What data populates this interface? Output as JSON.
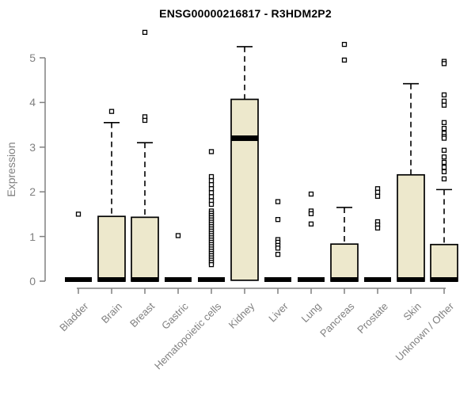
{
  "title": "ENSG00000216817 - R3HDM2P2",
  "y_axis": {
    "label": "Expression"
  },
  "colors": {
    "box_fill": "#EDE8CC",
    "box_border": "#000000",
    "median": "#000000",
    "outlier_fill": "#FFFFFF",
    "axis": "#808080",
    "tick_text": "#808080",
    "title_text": "#000000",
    "background": "#FFFFFF"
  },
  "chart_data": {
    "type": "boxplot",
    "title": "ENSG00000216817 - R3HDM2P2",
    "xlabel": "",
    "ylabel": "Expression",
    "ylim": [
      0,
      5
    ],
    "yticks": [
      0,
      1,
      2,
      3,
      4,
      5
    ],
    "grid": false,
    "legend": "none",
    "categories": [
      "Bladder",
      "Brain",
      "Breast",
      "Gastric",
      "Hematopoietic cells",
      "Kidney",
      "Liver",
      "Lung",
      "Pancreas",
      "Prostate",
      "Skin",
      "Unknown / Other"
    ],
    "series": [
      {
        "name": "Bladder",
        "whisker_low": 0,
        "q1": 0,
        "median": 0,
        "q3": 0,
        "whisker_high": 0,
        "outliers": [
          1.5
        ]
      },
      {
        "name": "Brain",
        "whisker_low": 0,
        "q1": 0,
        "median": 0.02,
        "q3": 1.45,
        "whisker_high": 3.55,
        "outliers": [
          3.8
        ]
      },
      {
        "name": "Breast",
        "whisker_low": 0,
        "q1": 0,
        "median": 0.02,
        "q3": 1.43,
        "whisker_high": 3.1,
        "outliers": [
          3.68,
          3.6,
          5.57
        ]
      },
      {
        "name": "Gastric",
        "whisker_low": 0,
        "q1": 0,
        "median": 0,
        "q3": 0,
        "whisker_high": 0,
        "outliers": [
          1.02
        ]
      },
      {
        "name": "Hematopoietic cells",
        "whisker_low": 0,
        "q1": 0,
        "median": 0,
        "q3": 0,
        "whisker_high": 0,
        "outliers": [
          2.9,
          2.34,
          2.25,
          2.16,
          2.07,
          1.98,
          1.89,
          1.8,
          1.72,
          1.57,
          1.52,
          1.47,
          1.42,
          1.37,
          1.32,
          1.27,
          1.22,
          1.17,
          1.12,
          1.07,
          1.02,
          0.97,
          0.92,
          0.87,
          0.82,
          0.77,
          0.72,
          0.67,
          0.62,
          0.57,
          0.52,
          0.47,
          0.42,
          0.37
        ]
      },
      {
        "name": "Kidney",
        "whisker_low": 0,
        "q1": 0.02,
        "median": 3.2,
        "q3": 4.07,
        "whisker_high": 5.25,
        "outliers": []
      },
      {
        "name": "Liver",
        "whisker_low": 0,
        "q1": 0,
        "median": 0,
        "q3": 0,
        "whisker_high": 0,
        "outliers": [
          1.78,
          1.38,
          0.93,
          0.87,
          0.8,
          0.74,
          0.6
        ]
      },
      {
        "name": "Lung",
        "whisker_low": 0,
        "q1": 0,
        "median": 0,
        "q3": 0,
        "whisker_high": 0,
        "outliers": [
          1.95,
          1.57,
          1.51,
          1.28
        ]
      },
      {
        "name": "Pancreas",
        "whisker_low": 0,
        "q1": 0,
        "median": 0.02,
        "q3": 0.83,
        "whisker_high": 1.65,
        "outliers": [
          5.3,
          4.95
        ]
      },
      {
        "name": "Prostate",
        "whisker_low": 0,
        "q1": 0,
        "median": 0,
        "q3": 0,
        "whisker_high": 0,
        "outliers": [
          2.07,
          1.99,
          1.9,
          1.33,
          1.26,
          1.19
        ]
      },
      {
        "name": "Skin",
        "whisker_low": 0,
        "q1": 0,
        "median": 0.02,
        "q3": 2.38,
        "whisker_high": 4.42,
        "outliers": []
      },
      {
        "name": "Unknown / Other",
        "whisker_low": 0,
        "q1": 0,
        "median": 0.02,
        "q3": 0.82,
        "whisker_high": 2.05,
        "outliers": [
          4.92,
          4.87,
          4.17,
          4.03,
          3.94,
          3.55,
          3.42,
          3.31,
          3.24,
          3.2,
          2.93,
          2.78,
          2.66,
          2.55,
          2.45,
          2.29
        ]
      }
    ]
  }
}
